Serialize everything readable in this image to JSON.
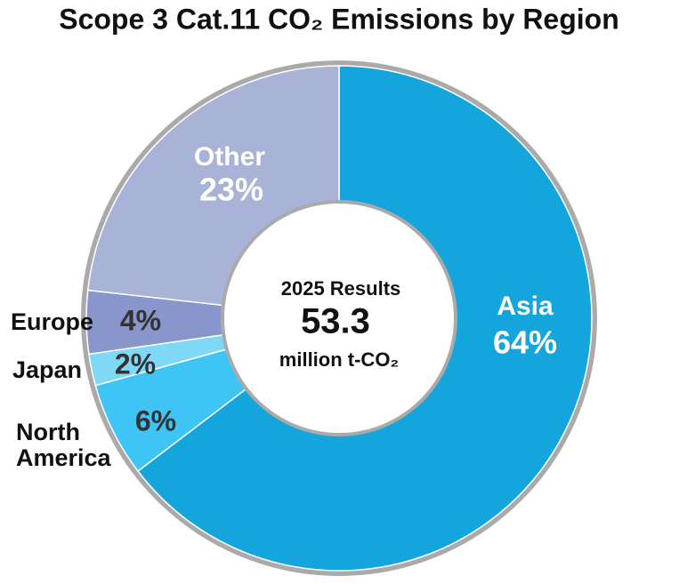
{
  "chart_data": {
    "type": "donut",
    "title": "Scope 3 Cat.11 CO₂ Emissions by Region",
    "categories": [
      "Asia",
      "North America",
      "Japan",
      "Europe",
      "Other"
    ],
    "values": [
      64,
      6,
      2,
      4,
      23
    ],
    "value_labels": [
      "64%",
      "6%",
      "2%",
      "4%",
      "23%"
    ],
    "colors": [
      "#14a5dc",
      "#3ec5f5",
      "#80d8f7",
      "#8896cb",
      "#a8b3d7"
    ],
    "center_title": "2025 Results",
    "center_value": 53.3,
    "center_unit": "million t-CO₂"
  }
}
